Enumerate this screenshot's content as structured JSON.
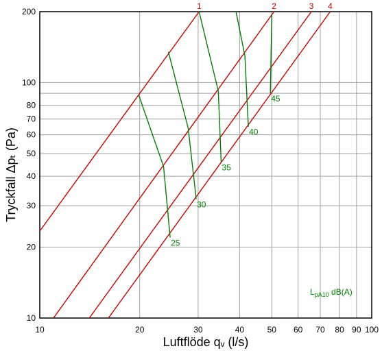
{
  "chart_data": {
    "type": "line",
    "xlabel": "Luftflöde qᵥ (l/s)",
    "ylabel": "Tryckfall Δpₜ (Pa)",
    "x_scale": "log",
    "y_scale": "log",
    "xlim": [
      10,
      100
    ],
    "ylim": [
      10,
      200
    ],
    "grid": true,
    "x_ticks": [
      10,
      20,
      30,
      40,
      50,
      60,
      70,
      80,
      90,
      100
    ],
    "y_ticks": [
      10,
      20,
      30,
      40,
      50,
      60,
      70,
      80,
      100,
      200
    ],
    "y_gridlines": [
      10,
      20,
      30,
      40,
      50,
      60,
      70,
      80,
      90,
      100,
      200
    ],
    "legend": {
      "main": "L",
      "sub": "pA10",
      "rest": " dB(A)",
      "placement": "bottom-right"
    },
    "pressure_lines": {
      "color": "#cc0000",
      "series": [
        {
          "name": "1",
          "points": [
            [
              10,
              23.4
            ],
            [
              30.2,
              200
            ]
          ]
        },
        {
          "name": "2",
          "points": [
            [
              11.0,
              10
            ],
            [
              50.8,
              200
            ]
          ]
        },
        {
          "name": "3",
          "points": [
            [
              14.1,
              10
            ],
            [
              65.8,
              200
            ]
          ]
        },
        {
          "name": "4",
          "points": [
            [
              16.1,
              10
            ],
            [
              75.0,
              200
            ]
          ]
        }
      ]
    },
    "sound_curves": {
      "color": "#008000",
      "series": [
        {
          "name": "25",
          "points": [
            [
              19.9,
              88
            ],
            [
              23.6,
              44
            ],
            [
              24.7,
              22
            ]
          ]
        },
        {
          "name": "30",
          "points": [
            [
              24.4,
              135
            ],
            [
              28.0,
              64
            ],
            [
              29.6,
              32
            ]
          ]
        },
        {
          "name": "35",
          "points": [
            [
              30.2,
              200
            ],
            [
              34.5,
              92
            ],
            [
              35.2,
              46
            ]
          ]
        },
        {
          "name": "40",
          "points": [
            [
              39.0,
              200
            ],
            [
              41.5,
              130
            ],
            [
              42.5,
              65
            ]
          ]
        },
        {
          "name": "45",
          "points": [
            [
              50.0,
              195
            ],
            [
              49.5,
              90
            ]
          ]
        }
      ]
    }
  }
}
